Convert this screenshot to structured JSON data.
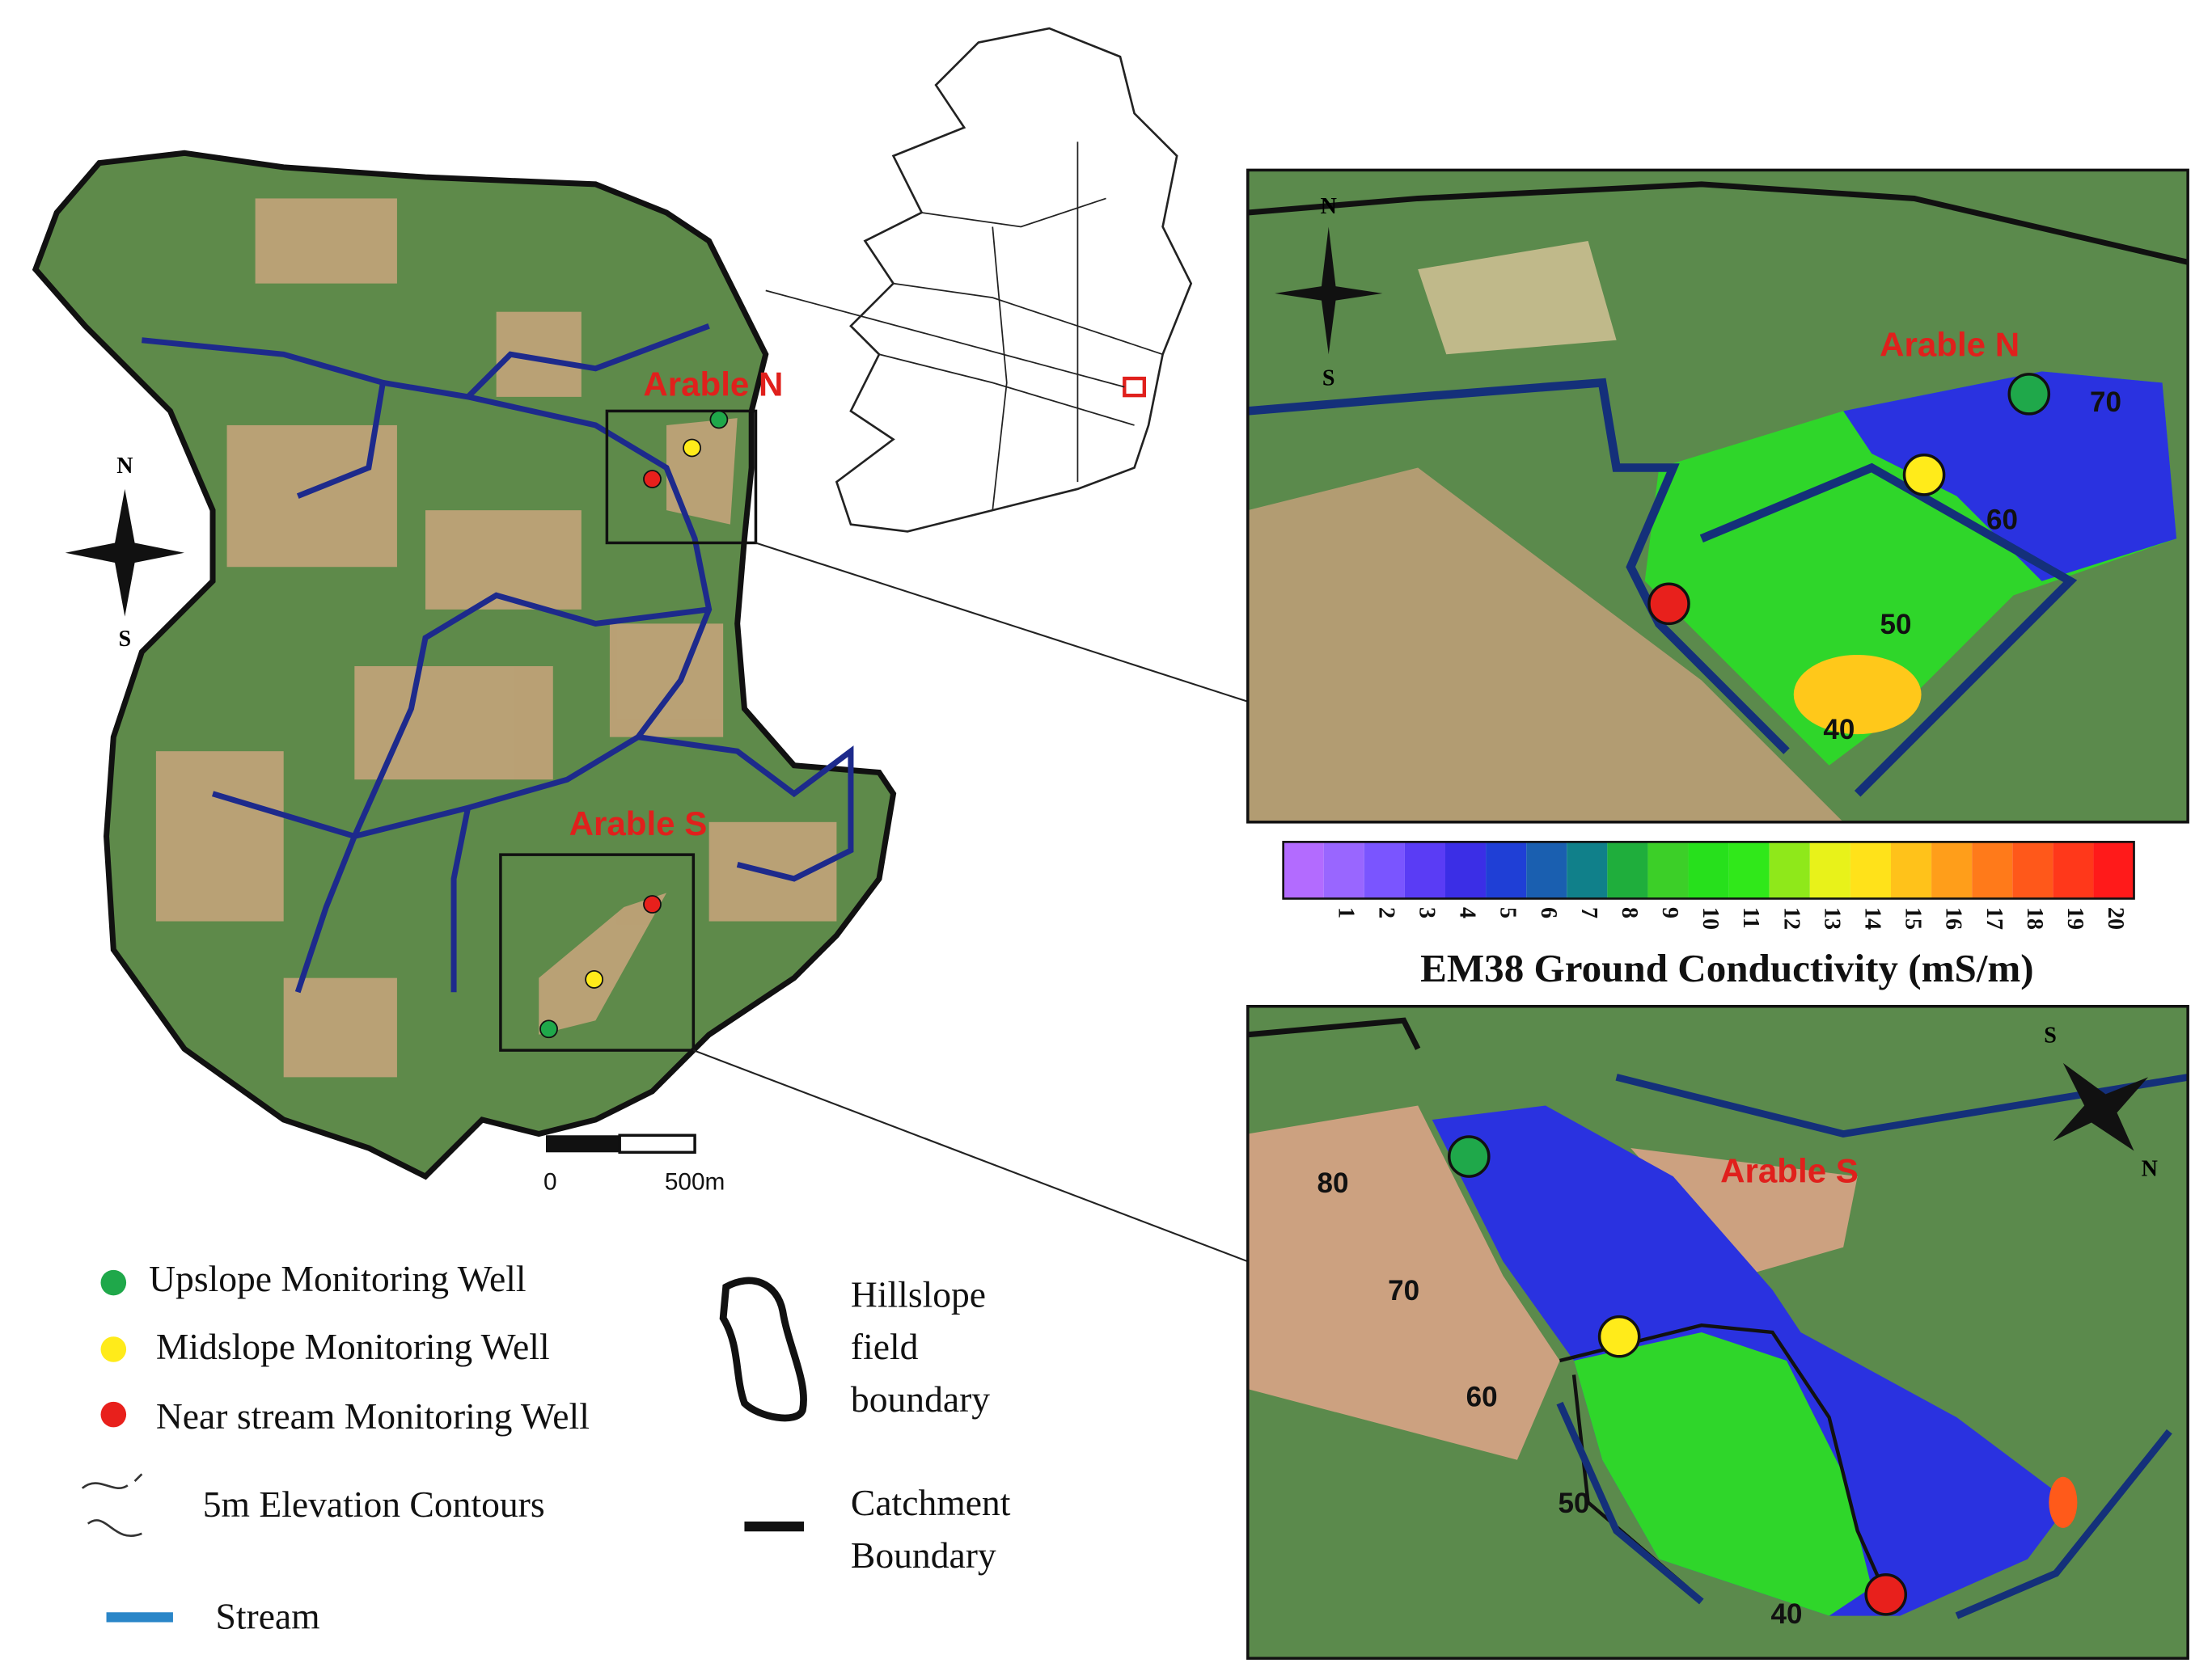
{
  "catchment_map": {
    "compass_n": "N",
    "compass_s": "S",
    "arable_n": "Arable N",
    "arable_s": "Arable S",
    "scale_bar": {
      "start": "0",
      "end": "500m"
    }
  },
  "panel_north": {
    "label": "Arable N",
    "compass_n": "N",
    "compass_s": "S",
    "contours": [
      70,
      60,
      50,
      40
    ]
  },
  "panel_south": {
    "label": "Arable S",
    "compass_s": "S",
    "compass_n": "N",
    "contours": [
      80,
      70,
      60,
      50,
      40
    ]
  },
  "colorbar": {
    "title": "EM38 Ground Conductivity (mS/m)",
    "ticks": [
      1,
      2,
      3,
      4,
      5,
      6,
      7,
      8,
      9,
      10,
      11,
      12,
      13,
      14,
      15,
      16,
      17,
      18,
      19,
      20
    ],
    "colors": [
      "#b36bff",
      "#9966ff",
      "#7a55ff",
      "#5a3cf5",
      "#3b2ee6",
      "#1f3fd6",
      "#1a5fb0",
      "#10808a",
      "#1fae3c",
      "#3ccf28",
      "#27e01c",
      "#30e81a",
      "#8fe81a",
      "#e8f21a",
      "#ffe21a",
      "#ffc21a",
      "#ff9e1a",
      "#ff7a1a",
      "#ff581a",
      "#ff381a",
      "#ff1a1a"
    ]
  },
  "legend": {
    "upslope": "Upslope Monitoring Well",
    "midslope": "Midslope Monitoring Well",
    "near_stream": "Near stream Monitoring Well",
    "contours": "5m Elevation Contours",
    "stream": "Stream",
    "hillslope": [
      "Hillslope",
      "field",
      "boundary"
    ],
    "catchment": [
      "Catchment",
      "Boundary"
    ]
  }
}
